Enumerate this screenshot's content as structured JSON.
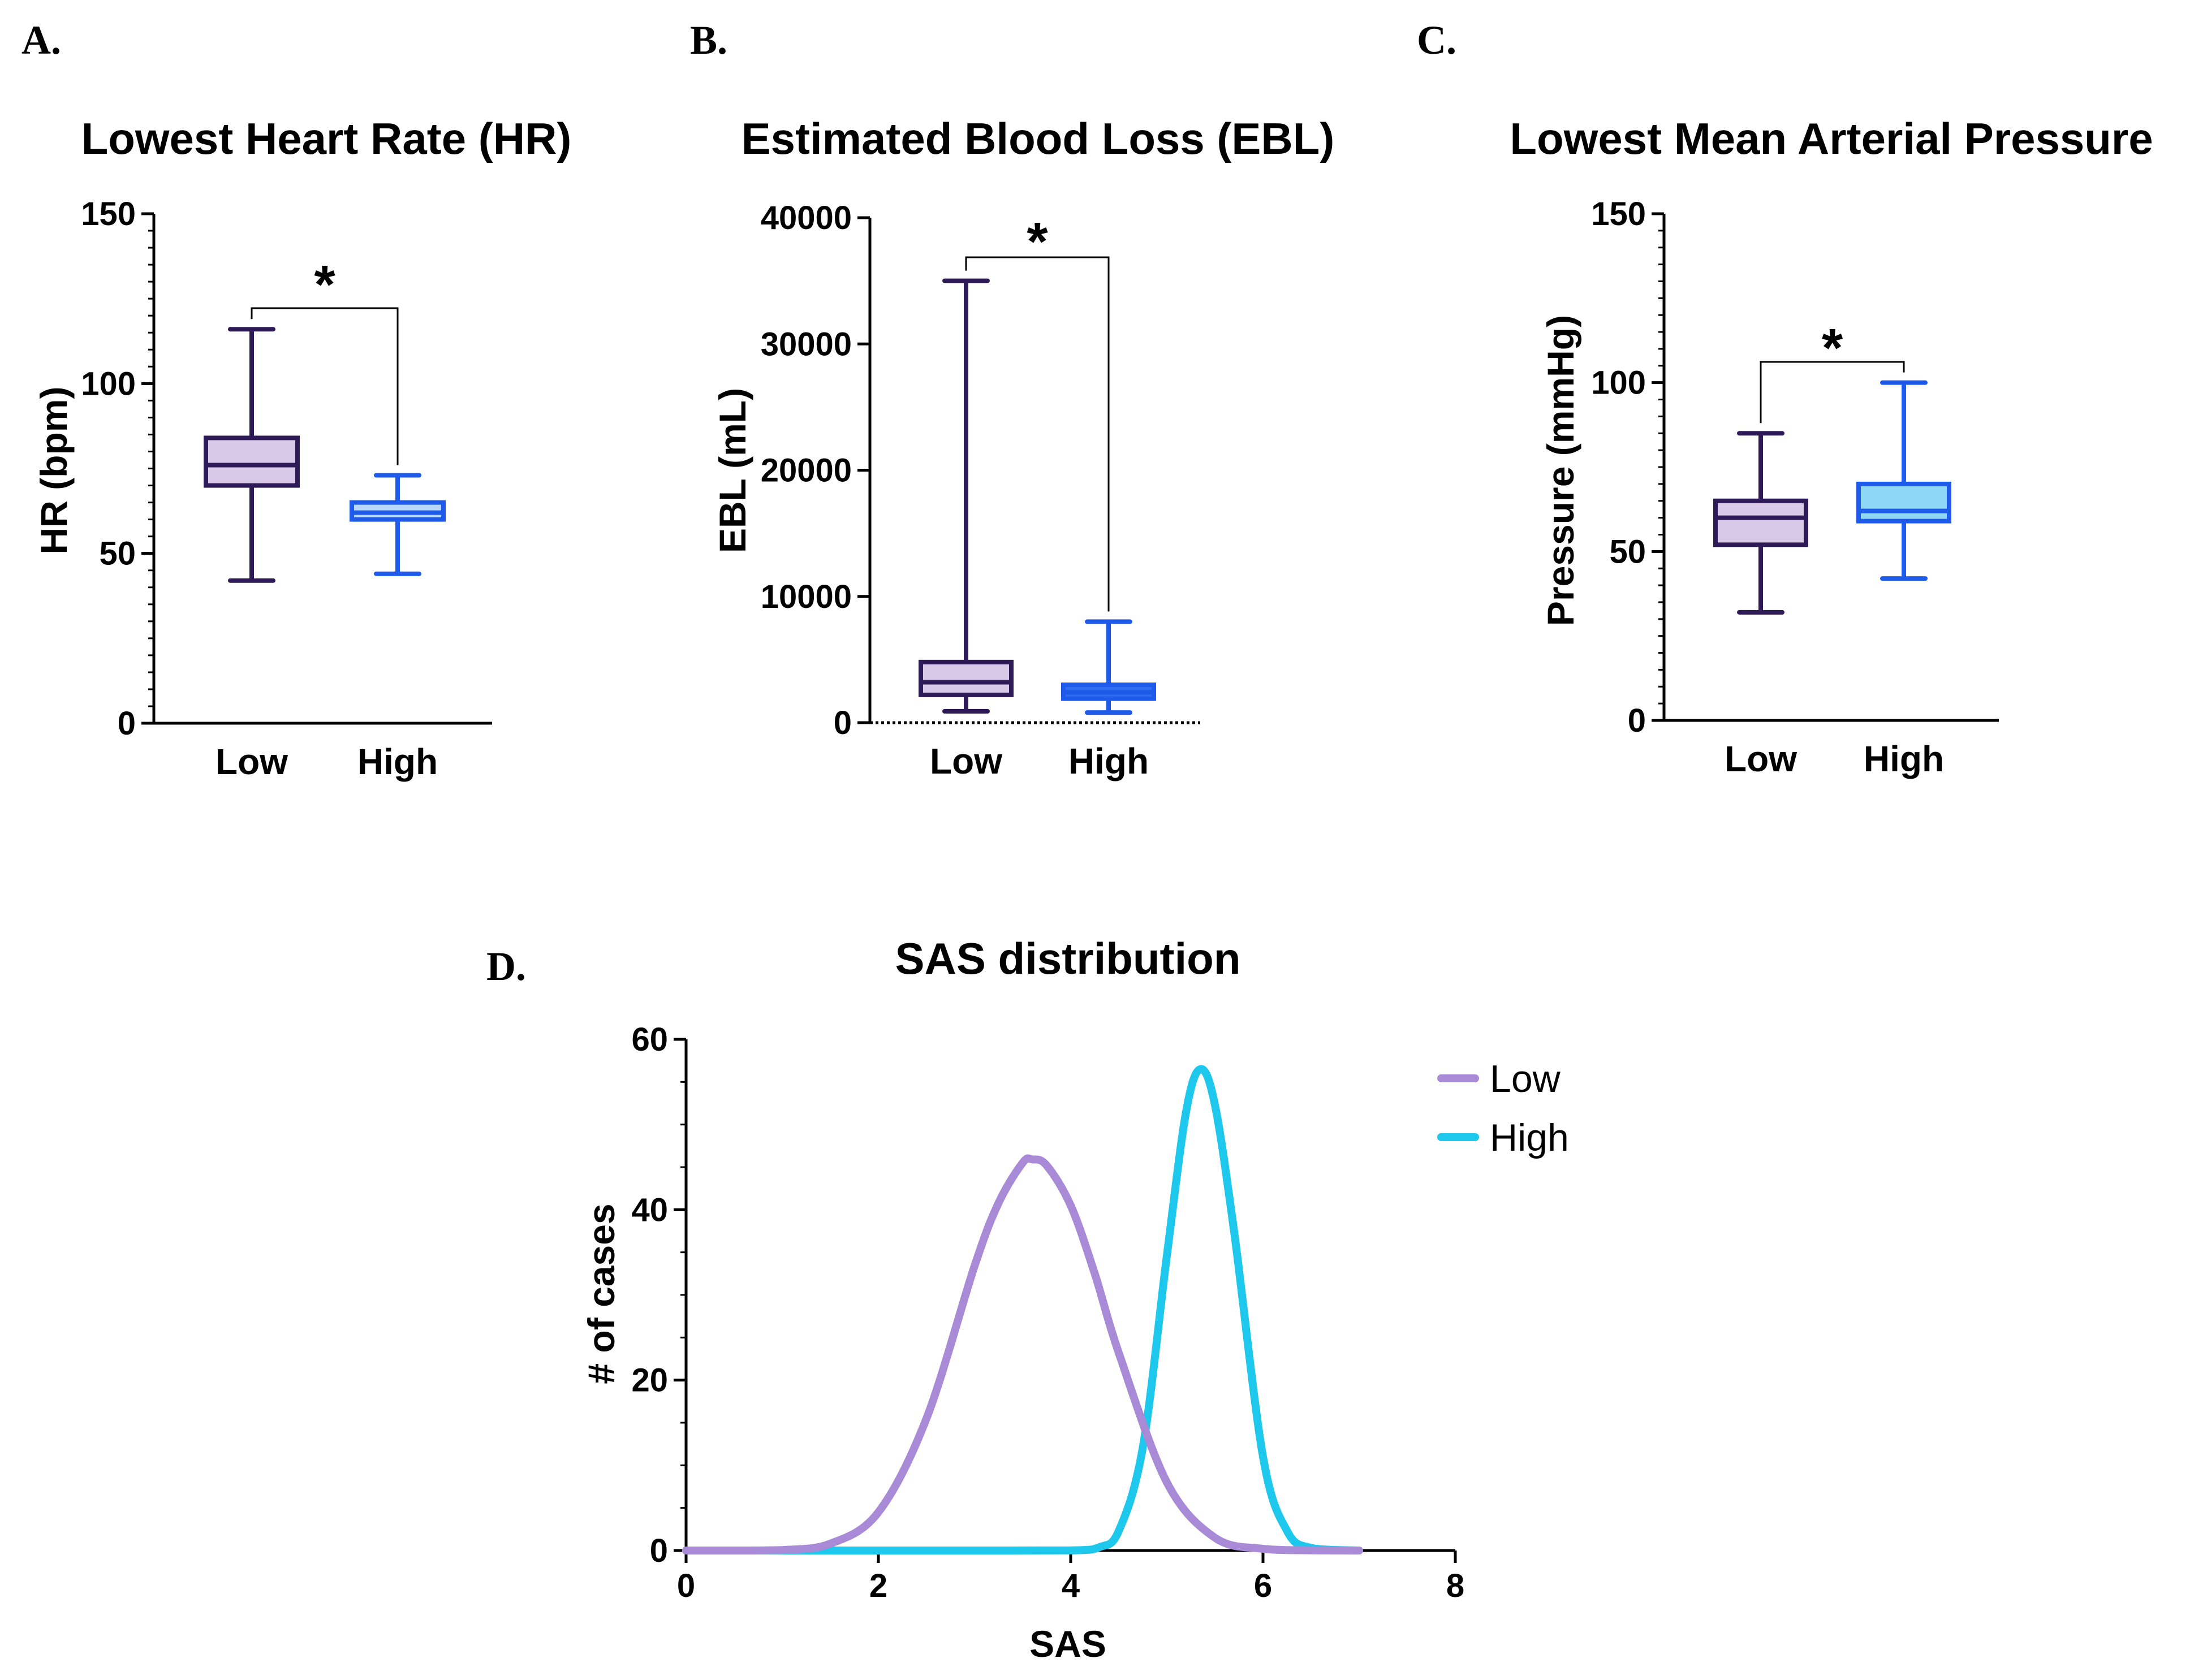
{
  "colors": {
    "low_stroke": "#2e1a57",
    "low_fill": "#d9c9e9",
    "high_stroke": "#1e5bea",
    "high_fill_a": "#b9d7f8",
    "high_fill_c": "#8ed8f5",
    "dist_low": "#a98ad6",
    "dist_high": "#1ec8ec",
    "axis": "#000000"
  },
  "panels": {
    "a": {
      "letter": "A."
    },
    "b": {
      "letter": "B."
    },
    "c": {
      "letter": "C."
    },
    "d": {
      "letter": "D."
    }
  },
  "chart_data": [
    {
      "id": "a",
      "type": "box",
      "title": "Lowest Heart Rate (HR)",
      "ylabel": "HR (bpm)",
      "xlabel": "",
      "ylim": [
        0,
        150
      ],
      "yticks": [
        0,
        50,
        100,
        150
      ],
      "ytick_labels": [
        "0",
        "50",
        "100",
        "150"
      ],
      "categories": [
        "Low",
        "High"
      ],
      "boxes": [
        {
          "name": "Low",
          "min": 42,
          "q1": 70,
          "median": 76,
          "q3": 84,
          "max": 116
        },
        {
          "name": "High",
          "min": 44,
          "q1": 60,
          "median": 62,
          "q3": 65,
          "max": 73
        }
      ],
      "significance": "*"
    },
    {
      "id": "b",
      "type": "box",
      "title": "Estimated Blood Loss (EBL)",
      "ylabel": "EBL (mL)",
      "xlabel": "",
      "ylim": [
        0,
        40000
      ],
      "yticks": [
        0,
        10000,
        20000,
        30000,
        40000
      ],
      "ytick_labels": [
        "0",
        "10000",
        "20000",
        "30000",
        "40000"
      ],
      "categories": [
        "Low",
        "High"
      ],
      "boxes": [
        {
          "name": "Low",
          "min": 900,
          "q1": 2200,
          "median": 3200,
          "q3": 4800,
          "max": 35000
        },
        {
          "name": "High",
          "min": 800,
          "q1": 1900,
          "median": 2400,
          "q3": 3000,
          "max": 8000
        }
      ],
      "significance": "*"
    },
    {
      "id": "c",
      "type": "box",
      "title": "Lowest Mean Arterial Pressure",
      "ylabel": "Pressure (mmHg)",
      "xlabel": "",
      "ylim": [
        0,
        150
      ],
      "yticks": [
        0,
        50,
        100,
        150
      ],
      "ytick_labels": [
        "0",
        "50",
        "100",
        "150"
      ],
      "categories": [
        "Low",
        "High"
      ],
      "boxes": [
        {
          "name": "Low",
          "min": 32,
          "q1": 52,
          "median": 60,
          "q3": 65,
          "max": 85
        },
        {
          "name": "High",
          "min": 42,
          "q1": 59,
          "median": 62,
          "q3": 70,
          "max": 100
        }
      ],
      "significance": "*"
    },
    {
      "id": "d",
      "type": "line",
      "title": "SAS distribution",
      "xlabel": "SAS",
      "ylabel": "# of cases",
      "xlim": [
        0,
        8
      ],
      "ylim": [
        0,
        60
      ],
      "xticks": [
        0,
        2,
        4,
        6,
        8
      ],
      "xtick_labels": [
        "0",
        "2",
        "4",
        "6",
        "8"
      ],
      "yticks": [
        0,
        20,
        40,
        60
      ],
      "ytick_labels": [
        "0",
        "20",
        "40",
        "60"
      ],
      "legend_position": "top-right",
      "series": [
        {
          "name": "Low",
          "x": [
            0,
            0.5,
            1,
            1.5,
            2,
            2.5,
            3,
            3.25,
            3.5,
            3.6,
            3.75,
            4,
            4.25,
            4.5,
            5,
            5.5,
            6,
            6.5,
            7
          ],
          "y": [
            0,
            0,
            0.05,
            0.8,
            4.5,
            15.5,
            33.4,
            40.8,
            45.5,
            45.9,
            45.2,
            40.5,
            32.5,
            23.2,
            8,
            1.5,
            0.2,
            0.02,
            0
          ]
        },
        {
          "name": "High",
          "x": [
            0,
            1,
            2,
            3,
            4,
            4.3,
            4.5,
            4.75,
            5,
            5.2,
            5.35,
            5.5,
            5.7,
            6,
            6.25,
            6.5,
            7
          ],
          "y": [
            0,
            0,
            0,
            0,
            0.01,
            0.4,
            2.3,
            12.1,
            34.6,
            51.5,
            56.5,
            52.3,
            37.4,
            11,
            2.3,
            0.3,
            0
          ]
        }
      ]
    }
  ]
}
